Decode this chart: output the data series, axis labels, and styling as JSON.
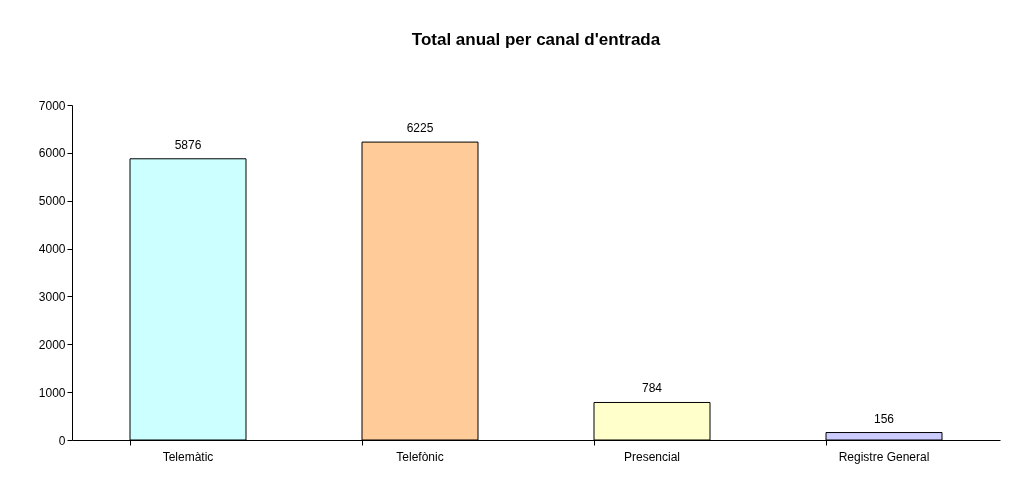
{
  "chart_data": {
    "type": "bar",
    "title": "Total anual per canal d'entrada",
    "categories": [
      "Telemàtic",
      "Telefònic",
      "Presencial",
      "Registre General"
    ],
    "values": [
      5876,
      6225,
      784,
      156
    ],
    "colors": [
      "#ccffff",
      "#ffcc99",
      "#ffffcc",
      "#ccccff"
    ],
    "ylim": [
      0,
      7000
    ],
    "yticks": [
      0,
      1000,
      2000,
      3000,
      4000,
      5000,
      6000,
      7000
    ],
    "data_labels": true
  }
}
